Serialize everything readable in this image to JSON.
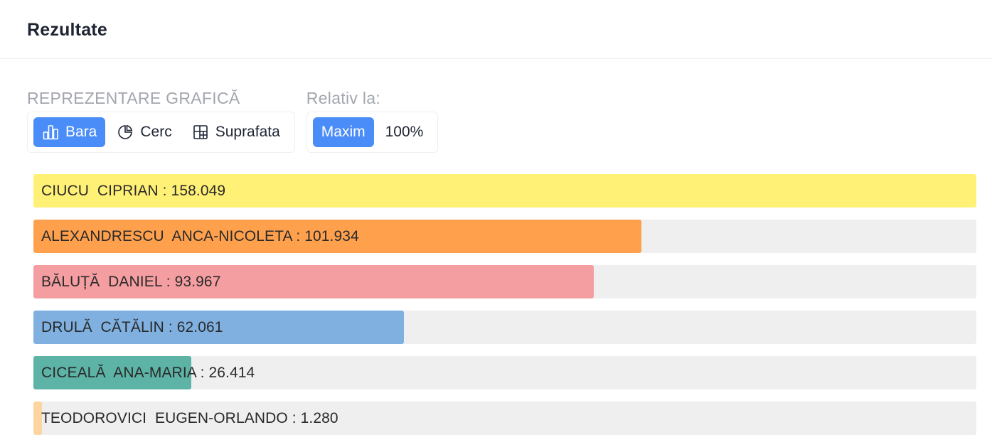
{
  "card": {
    "title": "Rezultate"
  },
  "controls": {
    "chart_type_label": "REPREZENTARE GRAFICĂ",
    "chart_types": [
      {
        "label": "Bara",
        "icon": "bar-chart-icon",
        "active": true
      },
      {
        "label": "Cerc",
        "icon": "pie-chart-icon",
        "active": false
      },
      {
        "label": "Suprafata",
        "icon": "grid-icon",
        "active": false
      }
    ],
    "relative_label": "Relativ la:",
    "relative_options": [
      {
        "label": "Maxim",
        "active": true
      },
      {
        "label": "100%",
        "active": false
      }
    ]
  },
  "chart_data": {
    "type": "bar",
    "orientation": "horizontal",
    "scale": "relative to maximum",
    "categories": [
      "CIUCU  CIPRIAN",
      "ALEXANDRESCU  ANCA-NICOLETA",
      "BĂLUȚĂ  DANIEL",
      "DRULĂ  CĂTĂLIN",
      "CICEALĂ  ANA-MARIA",
      "TEODOROVICI  EUGEN-ORLANDO"
    ],
    "values": [
      158049,
      101934,
      93967,
      62061,
      26414,
      1280
    ],
    "value_labels": [
      "158.049",
      "101.934",
      "93.967",
      "62.061",
      "26.414",
      "1.280"
    ],
    "colors": [
      "#fff176",
      "#ffa04d",
      "#f59ea1",
      "#7fb0e0",
      "#5cb3a6",
      "#fdd5a0"
    ],
    "track_color": "#efefef"
  },
  "colors": {
    "accent": "#4b8df8",
    "title": "#1f2433",
    "muted_label": "#a3a6ad"
  }
}
